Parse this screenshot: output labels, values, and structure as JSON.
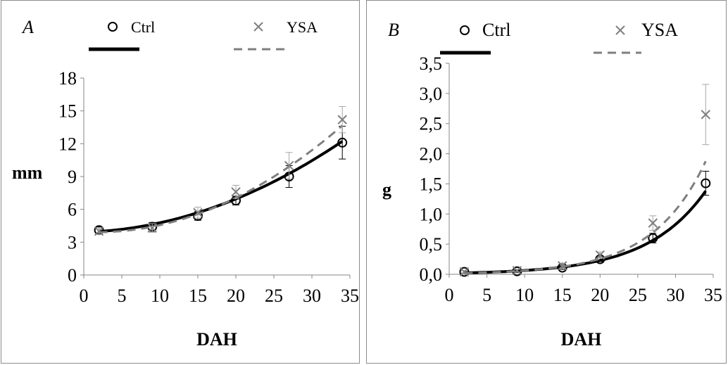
{
  "chart_data": [
    {
      "type": "scatter",
      "panel_label": "A",
      "xlabel": "DAH",
      "ylabel": "mm",
      "xlim": [
        0,
        35
      ],
      "ylim": [
        0,
        18
      ],
      "x_ticks": [
        "0",
        "5",
        "10",
        "15",
        "20",
        "25",
        "30",
        "35"
      ],
      "y_ticks": [
        "0",
        "3",
        "6",
        "9",
        "12",
        "15",
        "18"
      ],
      "grid": false,
      "legend_position": "top",
      "series": [
        {
          "name": "Ctrl",
          "marker": "circle",
          "line": "solid",
          "color": "#000000",
          "x": [
            2,
            9,
            15,
            20,
            27,
            34
          ],
          "y": [
            4.1,
            4.4,
            5.4,
            6.8,
            9.0,
            12.1
          ],
          "err": [
            0.3,
            0.4,
            0.4,
            0.4,
            1.0,
            1.5
          ],
          "fit": [
            3.91,
            0.02,
            0.0066
          ]
        },
        {
          "name": "YSA",
          "marker": "x",
          "line": "dashed",
          "color": "#7f7f7f",
          "x": [
            2,
            9,
            15,
            20,
            27,
            34
          ],
          "y": [
            4.0,
            4.3,
            5.7,
            7.6,
            10.0,
            14.2
          ],
          "err": [
            0.3,
            0.4,
            0.5,
            0.6,
            1.2,
            1.2
          ],
          "fit": [
            3.93,
            -0.03,
            0.0093
          ]
        }
      ]
    },
    {
      "type": "scatter",
      "panel_label": "B",
      "xlabel": "DAH",
      "ylabel": "g",
      "xlim": [
        0,
        35
      ],
      "ylim": [
        0,
        3.5
      ],
      "x_ticks": [
        "0",
        "5",
        "10",
        "15",
        "20",
        "25",
        "30",
        "35"
      ],
      "y_ticks": [
        "0,0",
        "0,5",
        "1,0",
        "1,5",
        "2,0",
        "2,5",
        "3,0",
        "3,5"
      ],
      "grid": false,
      "legend_position": "top",
      "series": [
        {
          "name": "Ctrl",
          "marker": "circle",
          "line": "solid",
          "color": "#000000",
          "x": [
            2,
            9,
            15,
            20,
            27,
            34
          ],
          "y": [
            0.04,
            0.05,
            0.11,
            0.25,
            0.6,
            1.51
          ],
          "err": [
            0.02,
            0.02,
            0.03,
            0.04,
            0.08,
            0.2
          ],
          "fit": [
            0.0175,
            0.1285
          ]
        },
        {
          "name": "YSA",
          "marker": "x",
          "line": "dashed",
          "color": "#7f7f7f",
          "x": [
            2,
            9,
            15,
            20,
            27,
            34
          ],
          "y": [
            0.04,
            0.06,
            0.14,
            0.32,
            0.85,
            2.65
          ],
          "err": [
            0.02,
            0.02,
            0.04,
            0.05,
            0.12,
            0.5
          ],
          "fit": [
            0.015,
            0.142
          ]
        }
      ]
    }
  ]
}
